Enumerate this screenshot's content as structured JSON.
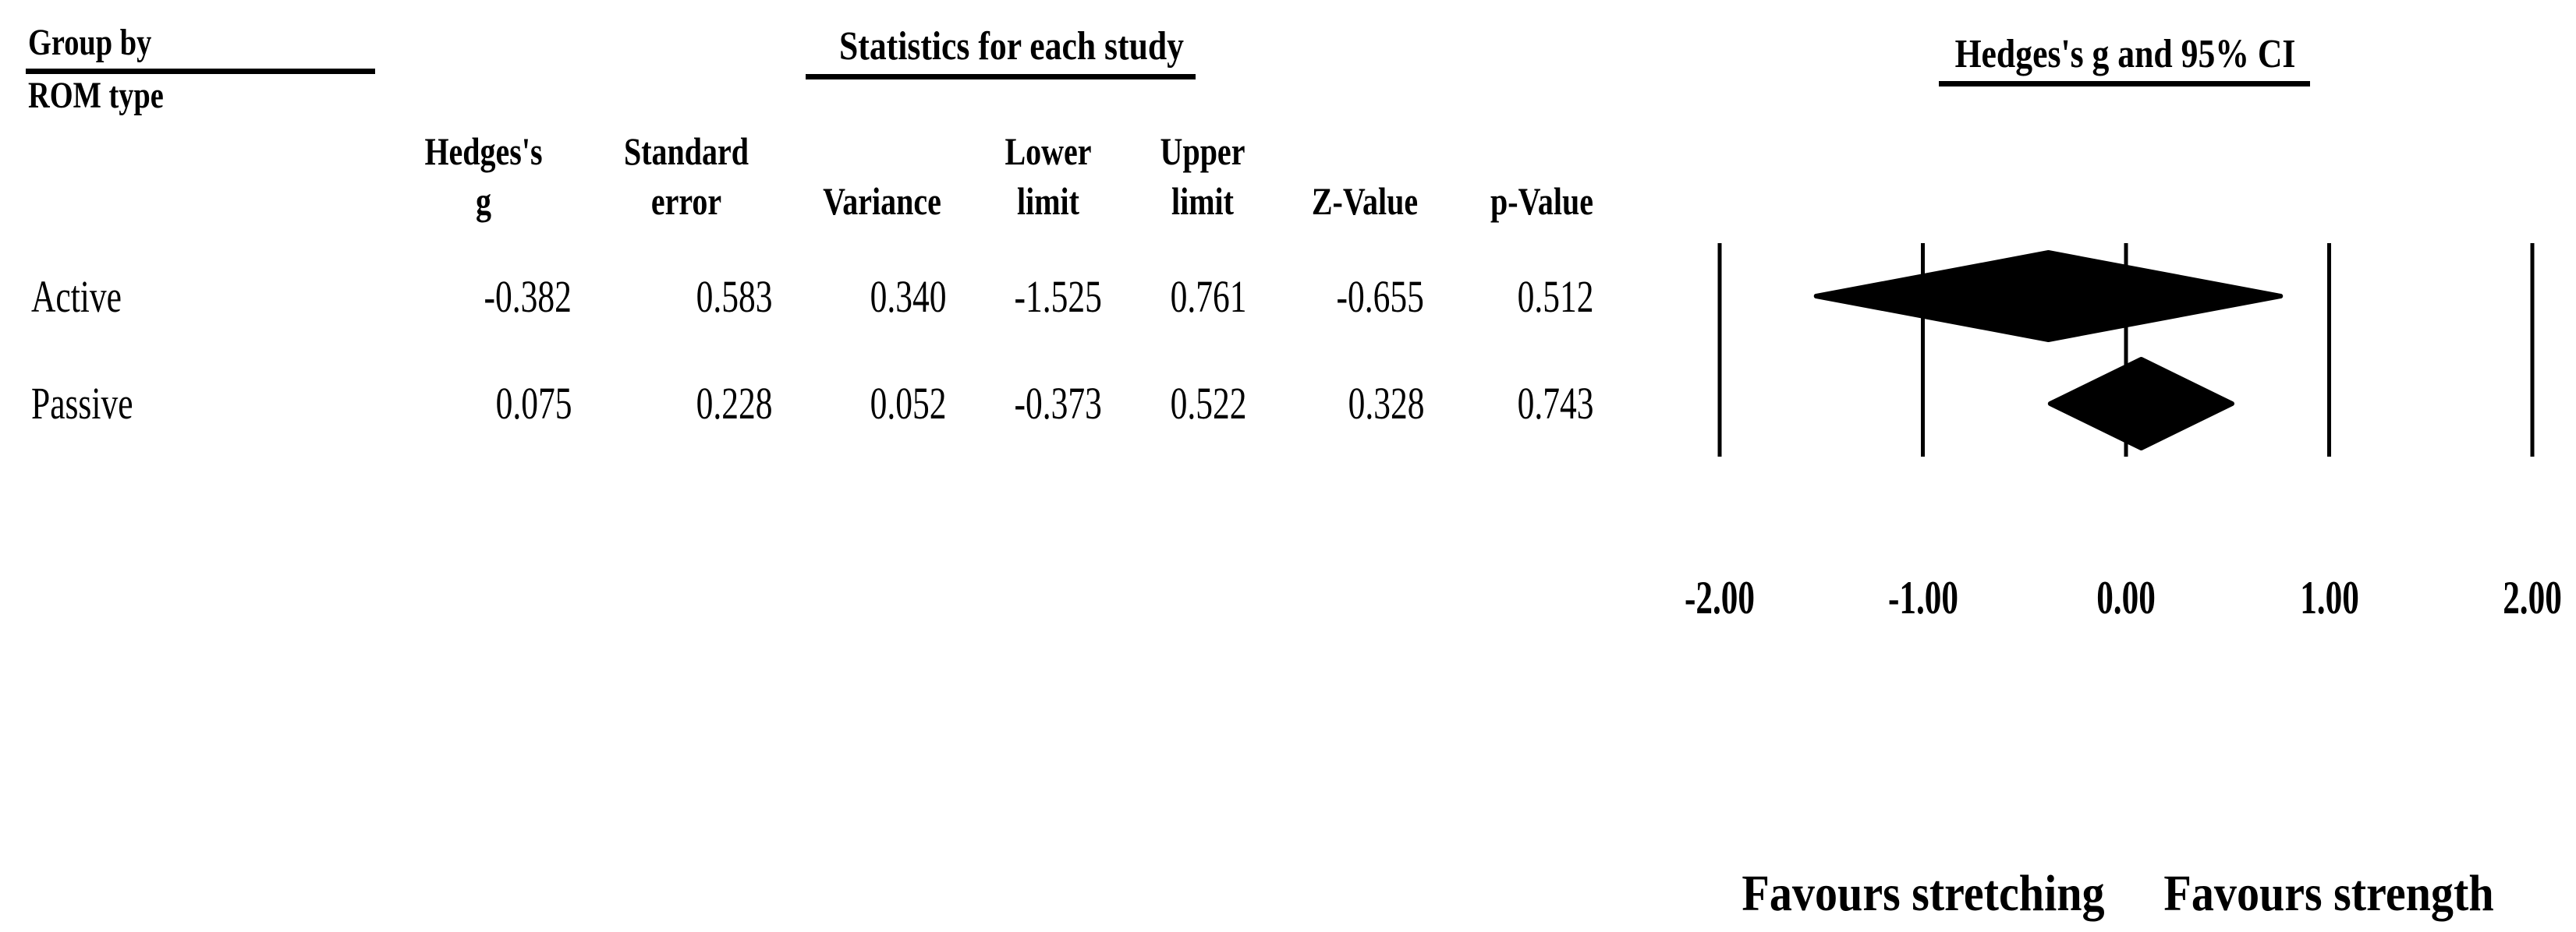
{
  "header": {
    "group_by_line1": "Group by",
    "group_by_line2": "ROM type",
    "stats_title": "Statistics for each study",
    "ci_title": "Hedges's g and 95% CI"
  },
  "table": {
    "columns": [
      {
        "line1": "Hedges's",
        "line2": "g"
      },
      {
        "line1": "Standard",
        "line2": "error"
      },
      {
        "line1": "",
        "line2": "Variance"
      },
      {
        "line1": "Lower",
        "line2": "limit"
      },
      {
        "line1": "Upper",
        "line2": "limit"
      },
      {
        "line1": "",
        "line2": "Z-Value"
      },
      {
        "line1": "",
        "line2": "p-Value"
      }
    ],
    "rows": [
      {
        "label": "Active",
        "values": [
          "-0.382",
          "0.583",
          "0.340",
          "-1.525",
          "0.761",
          "-0.655",
          "0.512"
        ]
      },
      {
        "label": "Passive",
        "values": [
          "0.075",
          "0.228",
          "0.052",
          "-0.373",
          "0.522",
          "0.328",
          "0.743"
        ]
      }
    ]
  },
  "chart_data": {
    "type": "forest",
    "title": "Hedges's g and 95% CI",
    "group_by_label": "ROM type",
    "groups": [
      {
        "name": "Active",
        "hedges_g": -0.382,
        "standard_error": 0.583,
        "variance": 0.34,
        "lower": -1.525,
        "upper": 0.761,
        "z_value": -0.655,
        "p_value": 0.512
      },
      {
        "name": "Passive",
        "hedges_g": 0.075,
        "standard_error": 0.228,
        "variance": 0.052,
        "lower": -0.373,
        "upper": 0.522,
        "z_value": 0.328,
        "p_value": 0.743
      }
    ],
    "x_ticks": [
      "-2.00",
      "-1.00",
      "0.00",
      "1.00",
      "2.00"
    ],
    "x_tick_values": [
      -2,
      -1,
      0,
      1,
      2
    ],
    "xlim": [
      -2,
      2
    ],
    "marker": "diamond",
    "grid": "vertical-lines-only",
    "footer_left": "Favours stretching",
    "footer_right": "Favours strength",
    "colors": {
      "foreground": "#000000",
      "background": "#ffffff"
    }
  }
}
